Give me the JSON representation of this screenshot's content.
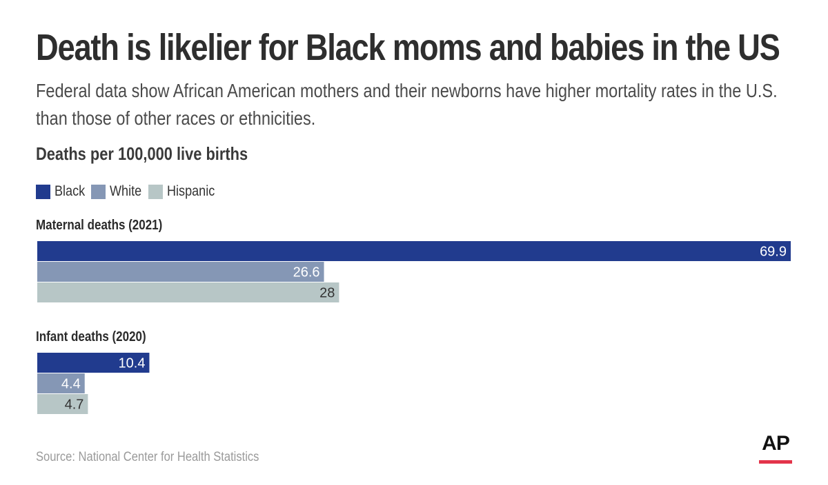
{
  "header": {
    "title": "Death is likelier for Black moms and babies in the US",
    "subtitle": "Federal data show African American mothers and their newborns have higher mortality rates in the U.S. than those of other races or ethnicities."
  },
  "chart_data": {
    "type": "bar",
    "orientation": "horizontal",
    "units_label": "Deaths per 100,000 live births",
    "legend_position": "top-left",
    "xlim": [
      0,
      70
    ],
    "series": [
      {
        "name": "Black",
        "color": "#213b8e"
      },
      {
        "name": "White",
        "color": "#8597b5"
      },
      {
        "name": "Hispanic",
        "color": "#b7c6c6"
      }
    ],
    "groups": [
      {
        "label": "Maternal deaths (2021)",
        "values": [
          69.9,
          26.6,
          28
        ],
        "value_labels": [
          "69.9",
          "26.6",
          "28"
        ]
      },
      {
        "label": "Infant deaths (2020)",
        "values": [
          10.4,
          4.4,
          4.7
        ],
        "value_labels": [
          "10.4",
          "4.4",
          "4.7"
        ]
      }
    ]
  },
  "footer": {
    "source": "Source: National Center for Health Statistics",
    "logo_text": "AP",
    "logo_accent": "#e3344a"
  }
}
